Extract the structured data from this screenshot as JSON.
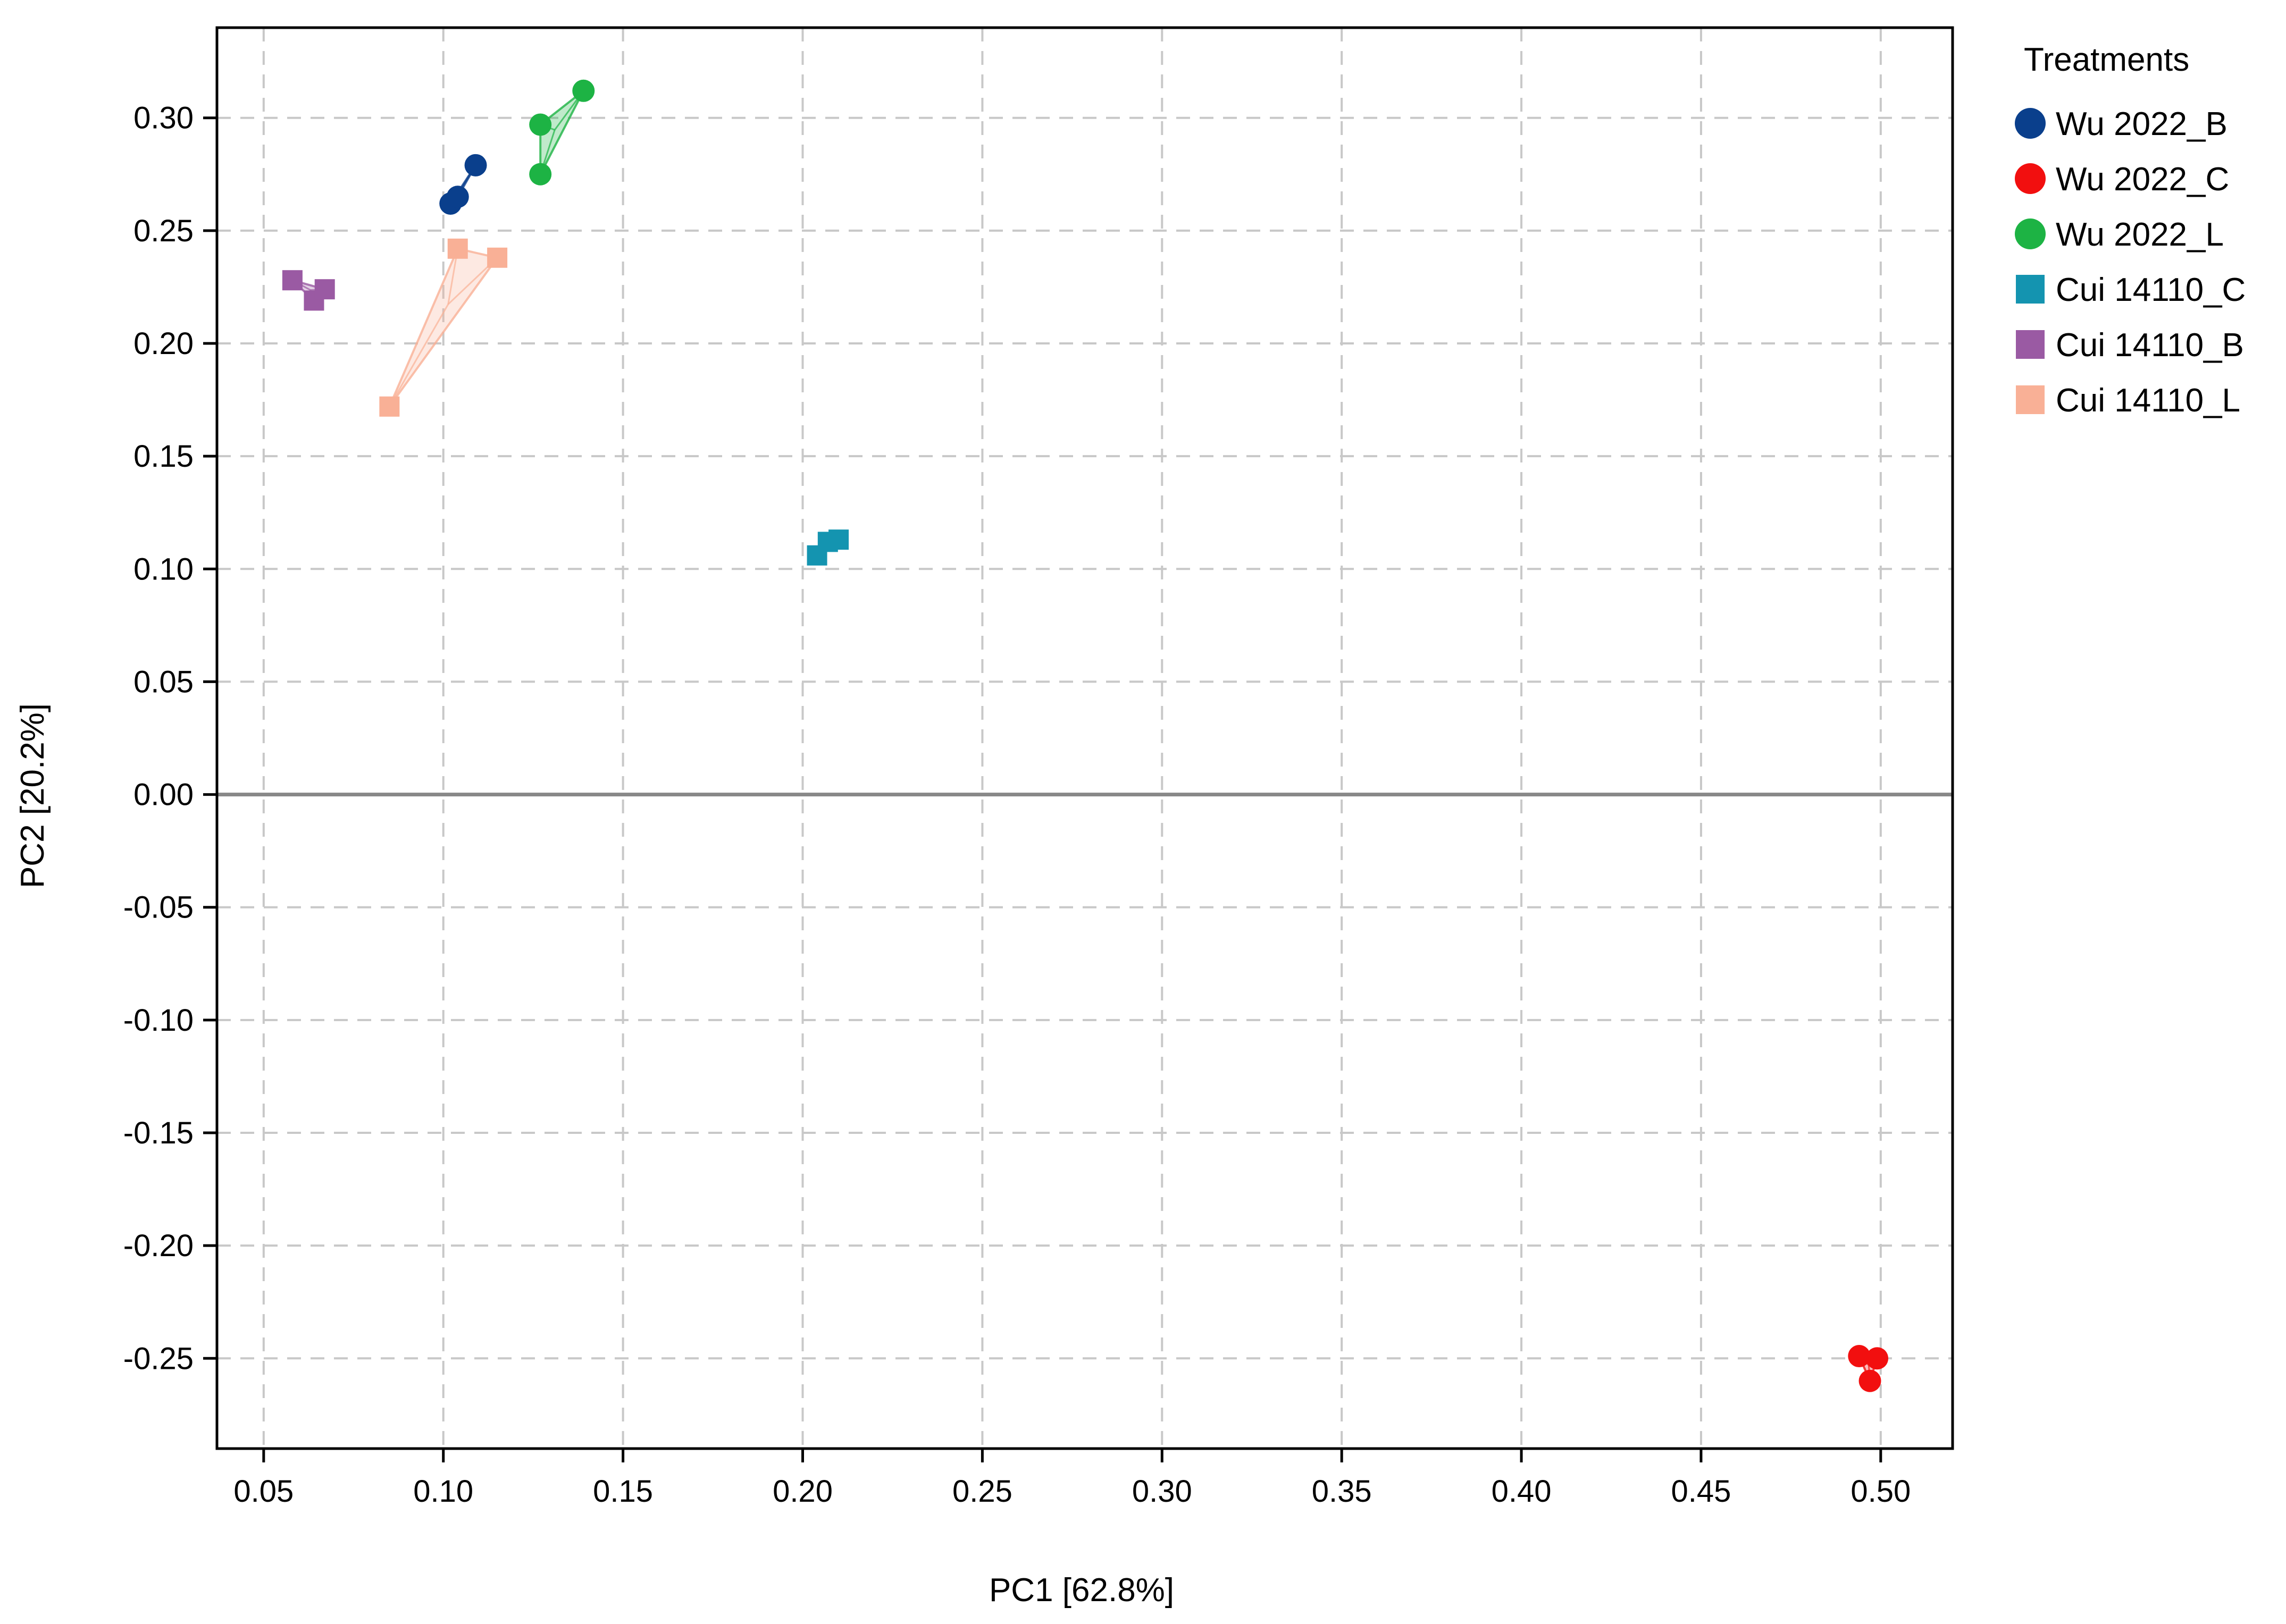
{
  "chart_data": {
    "type": "scatter",
    "xlabel": "PC1 [62.8%]",
    "ylabel": "PC2 [20.2%]",
    "xlim": [
      0.037,
      0.52
    ],
    "ylim": [
      -0.29,
      0.34
    ],
    "x_ticks": [
      0.05,
      0.1,
      0.15,
      0.2,
      0.25,
      0.3,
      0.35,
      0.4,
      0.45,
      0.5
    ],
    "x_tick_labels": [
      "0.05",
      "0.10",
      "0.15",
      "0.20",
      "0.25",
      "0.30",
      "0.35",
      "0.40",
      "0.45",
      "0.50"
    ],
    "y_ticks": [
      0.3,
      0.25,
      0.2,
      0.15,
      0.1,
      0.05,
      0.0,
      -0.05,
      -0.1,
      -0.15,
      -0.2,
      -0.25
    ],
    "y_tick_labels": [
      "0.30",
      "0.25",
      "0.20",
      "0.15",
      "0.10",
      "0.05",
      "0.00",
      "-0.05",
      "-0.10",
      "-0.15",
      "-0.20",
      "-0.25"
    ],
    "grid": true,
    "zero_line": true,
    "legend": {
      "title": "Treatments",
      "placement": "right"
    },
    "series": [
      {
        "name": "Wu 2022_B",
        "marker": "circle",
        "color": "#0a3f8c",
        "hull_fill": "#0a3f8c",
        "points": [
          [
            0.102,
            0.262
          ],
          [
            0.104,
            0.265
          ],
          [
            0.109,
            0.279
          ]
        ]
      },
      {
        "name": "Wu 2022_C",
        "marker": "circle",
        "color": "#f20f0f",
        "hull_fill": "#f20f0f",
        "points": [
          [
            0.494,
            -0.249
          ],
          [
            0.499,
            -0.25
          ],
          [
            0.497,
            -0.26
          ]
        ]
      },
      {
        "name": "Wu 2022_L",
        "marker": "circle",
        "color": "#1db344",
        "hull_fill": "#1db344",
        "points": [
          [
            0.127,
            0.297
          ],
          [
            0.139,
            0.312
          ],
          [
            0.127,
            0.275
          ]
        ]
      },
      {
        "name": "Cui 14110_C",
        "marker": "square",
        "color": "#1494b0",
        "hull_fill": "#1494b0",
        "points": [
          [
            0.204,
            0.106
          ],
          [
            0.207,
            0.112
          ],
          [
            0.21,
            0.113
          ]
        ]
      },
      {
        "name": "Cui 14110_B",
        "marker": "square",
        "color": "#9a5aa3",
        "hull_fill": "#9a5aa3",
        "points": [
          [
            0.058,
            0.228
          ],
          [
            0.064,
            0.219
          ],
          [
            0.067,
            0.224
          ]
        ]
      },
      {
        "name": "Cui 14110_L",
        "marker": "square",
        "color": "#f9b096",
        "hull_fill": "#f9b096",
        "points": [
          [
            0.085,
            0.172
          ],
          [
            0.104,
            0.242
          ],
          [
            0.115,
            0.238
          ]
        ]
      }
    ]
  }
}
